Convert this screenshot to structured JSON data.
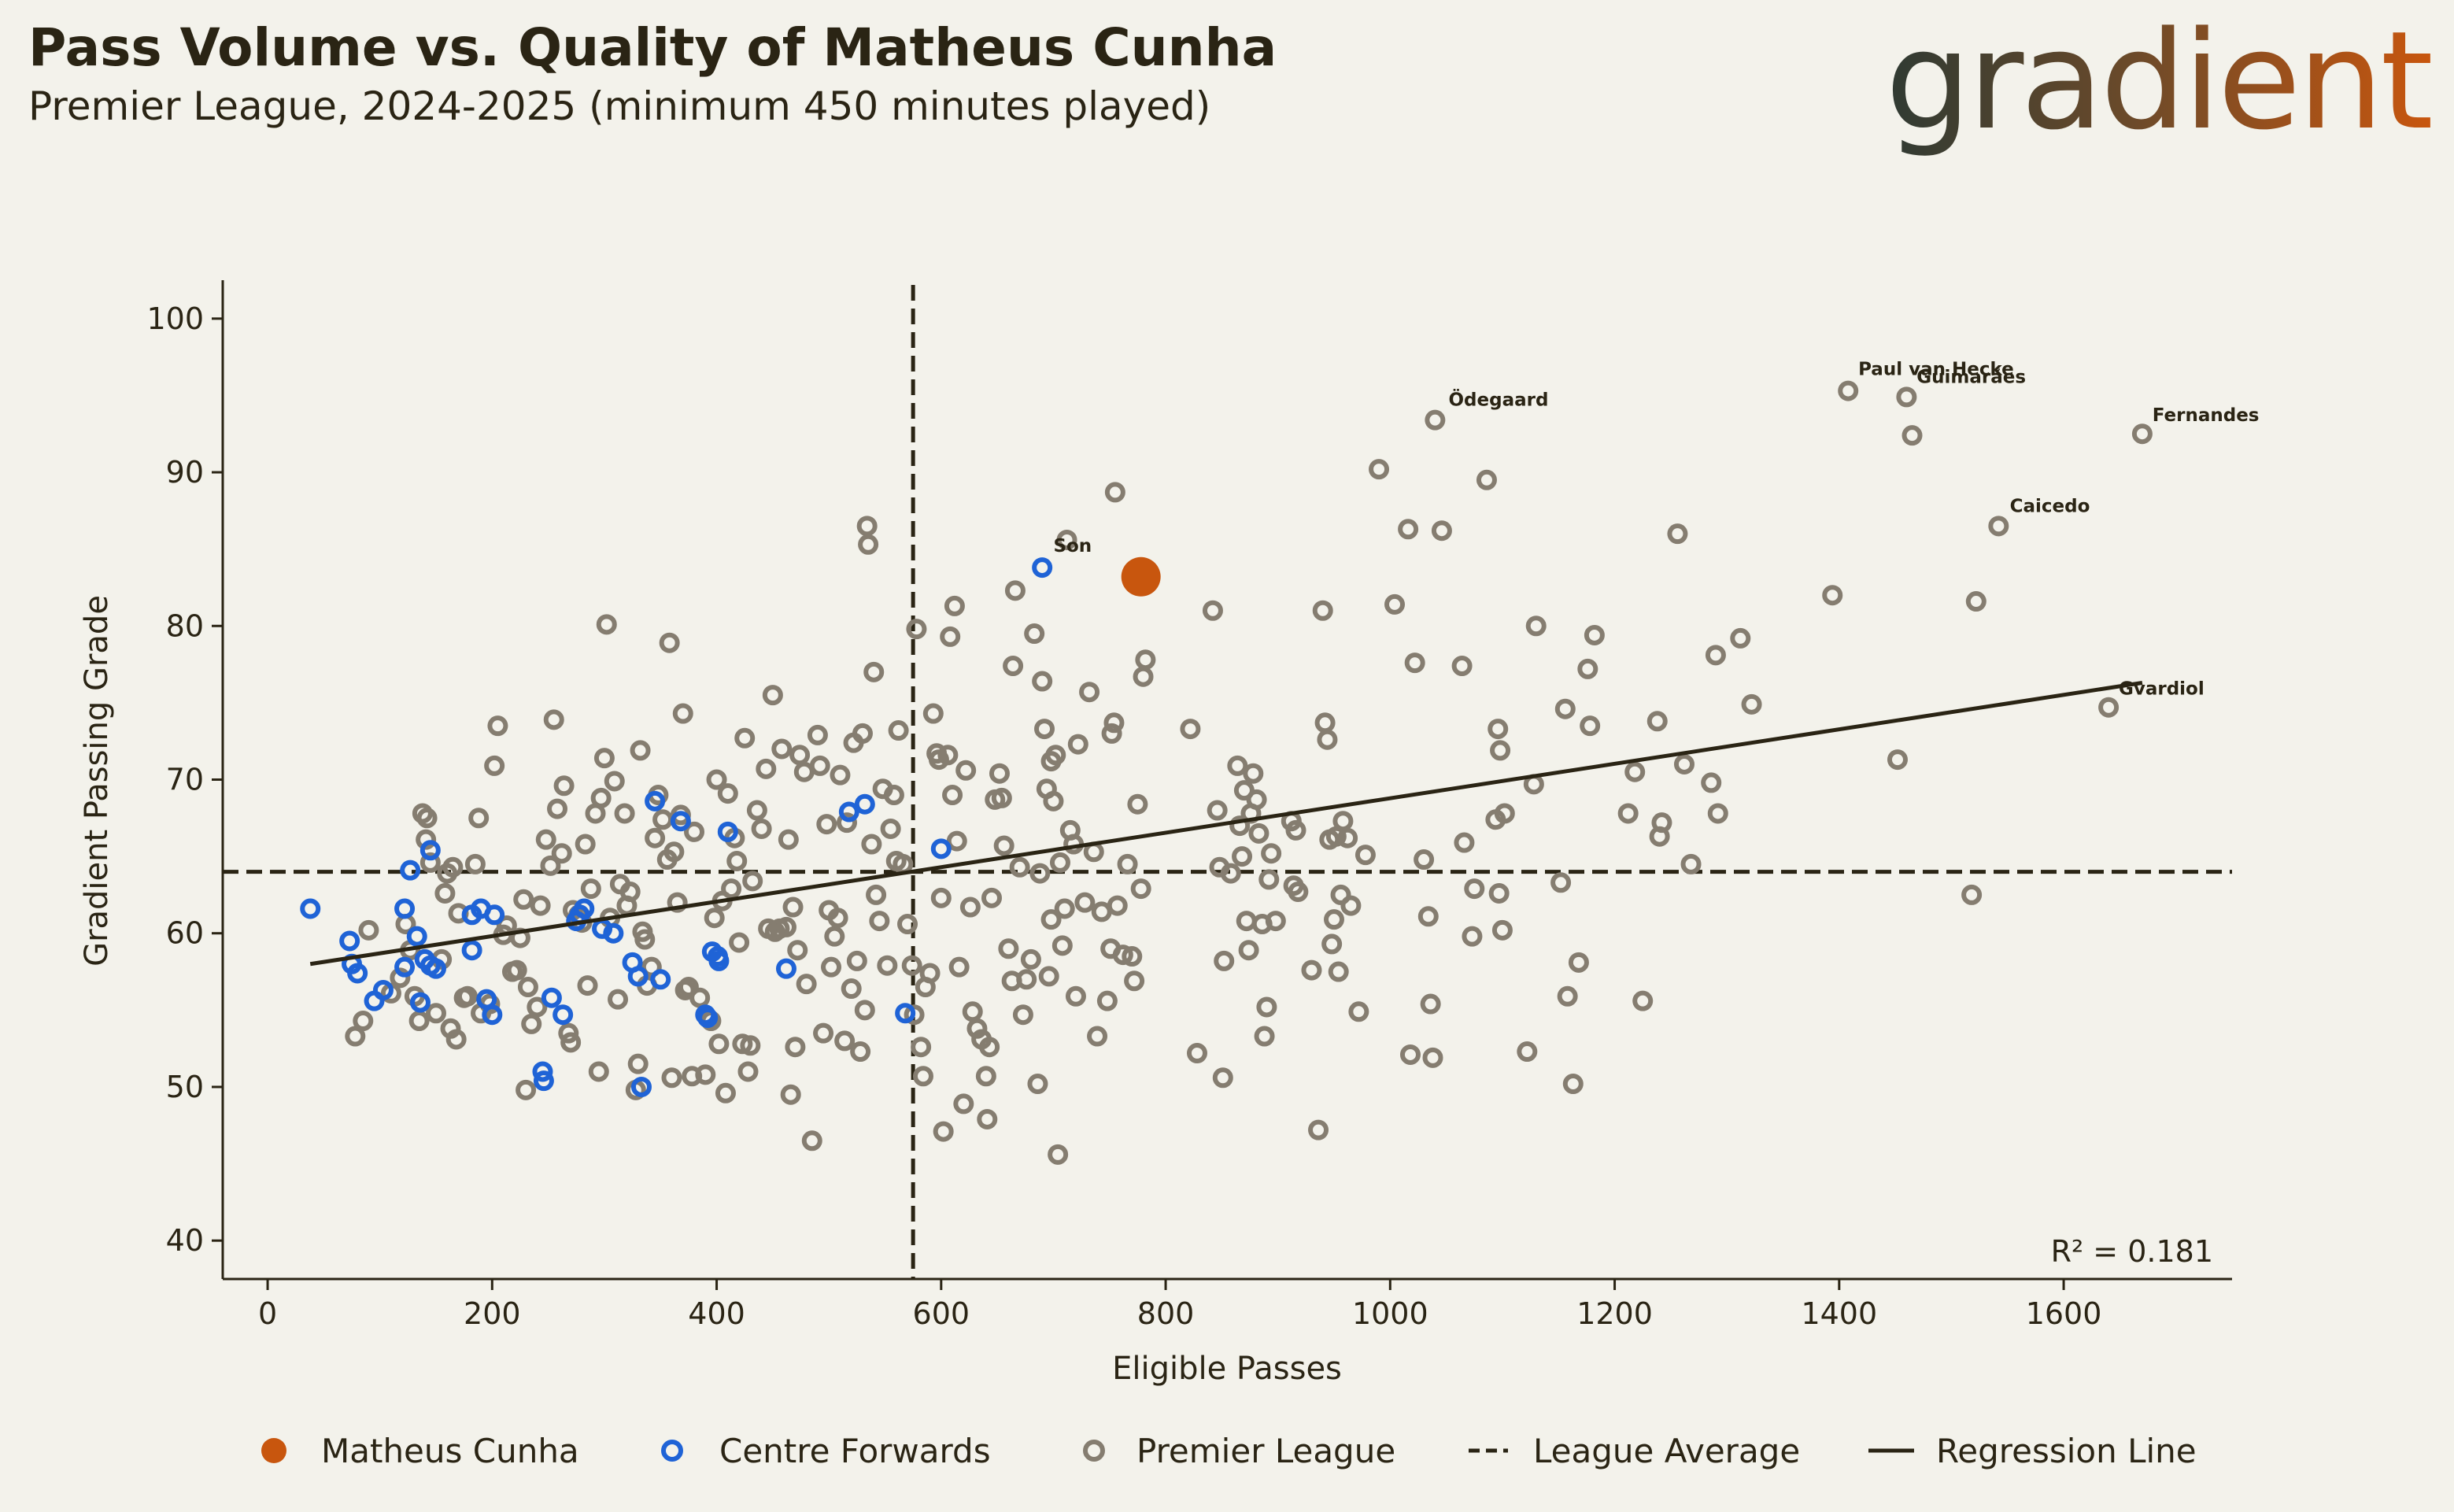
{
  "header": {
    "title": "Pass Volume vs. Quality of Matheus Cunha",
    "subtitle": "Premier League, 2024-2025 (minimum 450 minutes played)",
    "logo_text": "gradient"
  },
  "colors": {
    "background": "#f3f2eb",
    "text": "#2a2414",
    "highlight": "#c8560e",
    "centre_forward": "#1f63d6",
    "league": "#857d70",
    "lines": "#2a2414"
  },
  "chart_data": {
    "type": "scatter",
    "title": "Pass Volume vs. Quality of Matheus Cunha",
    "xlabel": "Eligible Passes",
    "ylabel": "Gradient Passing Grade",
    "xlim": [
      -40,
      1750
    ],
    "ylim": [
      37.5,
      102.5
    ],
    "xticks": [
      0,
      200,
      400,
      600,
      800,
      1000,
      1200,
      1400,
      1600
    ],
    "yticks": [
      40,
      50,
      60,
      70,
      80,
      90,
      100
    ],
    "league_average": {
      "x": 575,
      "y": 64
    },
    "regression": {
      "x1": 38,
      "y1": 58.0,
      "x2": 1670,
      "y2": 76.3
    },
    "r_squared_label": "R² = 0.181",
    "legend": [
      {
        "label": "Matheus Cunha",
        "kind": "highlight"
      },
      {
        "label": "Centre Forwards",
        "kind": "cf"
      },
      {
        "label": "Premier League",
        "kind": "league"
      },
      {
        "label": "League Average",
        "kind": "dashed"
      },
      {
        "label": "Regression Line",
        "kind": "solid"
      }
    ],
    "highlight": {
      "name": "Matheus Cunha",
      "x": 778,
      "y": 83.2
    },
    "annotations": [
      {
        "label": "Son",
        "x": 693,
        "y": 84.0
      },
      {
        "label": "Ödegaard",
        "x": 1045,
        "y": 93.5
      },
      {
        "label": "Paul van Hecke",
        "x": 1410,
        "y": 95.5
      },
      {
        "label": "Guimarães",
        "x": 1462,
        "y": 95.0
      },
      {
        "label": "Fernandes",
        "x": 1672,
        "y": 92.5
      },
      {
        "label": "Caicedo",
        "x": 1545,
        "y": 86.6
      },
      {
        "label": "Gvardiol",
        "x": 1642,
        "y": 74.7
      }
    ],
    "centre_forwards": [
      [
        38,
        61.6
      ],
      [
        73,
        59.5
      ],
      [
        75,
        58.0
      ],
      [
        80,
        57.4
      ],
      [
        95,
        55.6
      ],
      [
        103,
        56.3
      ],
      [
        122,
        57.8
      ],
      [
        122,
        61.6
      ],
      [
        127,
        64.1
      ],
      [
        133,
        59.8
      ],
      [
        136,
        55.5
      ],
      [
        140,
        58.3
      ],
      [
        145,
        65.4
      ],
      [
        145,
        57.9
      ],
      [
        150,
        57.7
      ],
      [
        182,
        61.2
      ],
      [
        182,
        58.9
      ],
      [
        190,
        61.6
      ],
      [
        195,
        55.7
      ],
      [
        200,
        54.7
      ],
      [
        202,
        61.2
      ],
      [
        245,
        51.0
      ],
      [
        246,
        50.4
      ],
      [
        253,
        55.8
      ],
      [
        263,
        54.7
      ],
      [
        275,
        60.8
      ],
      [
        278,
        61.2
      ],
      [
        282,
        61.6
      ],
      [
        298,
        60.3
      ],
      [
        308,
        60.0
      ],
      [
        325,
        58.1
      ],
      [
        330,
        57.2
      ],
      [
        333,
        50.0
      ],
      [
        345,
        68.6
      ],
      [
        350,
        57.0
      ],
      [
        368,
        67.3
      ],
      [
        390,
        54.7
      ],
      [
        392,
        54.5
      ],
      [
        396,
        58.8
      ],
      [
        401,
        58.5
      ],
      [
        402,
        58.2
      ],
      [
        410,
        66.6
      ],
      [
        462,
        57.7
      ],
      [
        518,
        67.9
      ],
      [
        532,
        68.4
      ],
      [
        568,
        54.8
      ],
      [
        600,
        65.5
      ],
      [
        690,
        83.8
      ]
    ],
    "league_points": [
      [
        78,
        53.3
      ],
      [
        85,
        54.3
      ],
      [
        90,
        60.2
      ],
      [
        110,
        56.1
      ],
      [
        118,
        57.1
      ],
      [
        123,
        60.6
      ],
      [
        127,
        58.9
      ],
      [
        131,
        55.9
      ],
      [
        135,
        54.3
      ],
      [
        138,
        67.8
      ],
      [
        141,
        66.1
      ],
      [
        142,
        67.5
      ],
      [
        145,
        64.6
      ],
      [
        150,
        54.8
      ],
      [
        155,
        58.3
      ],
      [
        158,
        62.6
      ],
      [
        160,
        63.9
      ],
      [
        163,
        53.8
      ],
      [
        165,
        64.3
      ],
      [
        168,
        53.1
      ],
      [
        170,
        61.3
      ],
      [
        175,
        55.8
      ],
      [
        178,
        55.9
      ],
      [
        185,
        64.5
      ],
      [
        188,
        67.5
      ],
      [
        190,
        54.8
      ],
      [
        198,
        55.4
      ],
      [
        202,
        70.9
      ],
      [
        205,
        73.5
      ],
      [
        210,
        59.9
      ],
      [
        213,
        60.5
      ],
      [
        218,
        57.5
      ],
      [
        222,
        57.6
      ],
      [
        225,
        59.7
      ],
      [
        228,
        62.2
      ],
      [
        230,
        49.8
      ],
      [
        232,
        56.5
      ],
      [
        235,
        54.1
      ],
      [
        240,
        55.2
      ],
      [
        243,
        61.8
      ],
      [
        248,
        66.1
      ],
      [
        252,
        64.4
      ],
      [
        255,
        73.9
      ],
      [
        258,
        68.1
      ],
      [
        262,
        65.2
      ],
      [
        264,
        69.6
      ],
      [
        268,
        53.5
      ],
      [
        270,
        52.9
      ],
      [
        272,
        61.5
      ],
      [
        277,
        61.2
      ],
      [
        280,
        60.7
      ],
      [
        283,
        65.8
      ],
      [
        285,
        56.6
      ],
      [
        288,
        62.9
      ],
      [
        292,
        67.8
      ],
      [
        295,
        51.0
      ],
      [
        297,
        68.8
      ],
      [
        300,
        71.4
      ],
      [
        302,
        80.1
      ],
      [
        305,
        61.0
      ],
      [
        309,
        69.9
      ],
      [
        312,
        55.7
      ],
      [
        314,
        63.2
      ],
      [
        318,
        67.8
      ],
      [
        320,
        61.8
      ],
      [
        323,
        62.7
      ],
      [
        328,
        49.8
      ],
      [
        330,
        51.5
      ],
      [
        332,
        71.9
      ],
      [
        334,
        60.1
      ],
      [
        336,
        59.6
      ],
      [
        338,
        56.6
      ],
      [
        342,
        57.8
      ],
      [
        345,
        66.2
      ],
      [
        348,
        69.0
      ],
      [
        352,
        67.4
      ],
      [
        356,
        64.8
      ],
      [
        358,
        78.9
      ],
      [
        360,
        50.6
      ],
      [
        362,
        65.3
      ],
      [
        365,
        62.0
      ],
      [
        368,
        67.7
      ],
      [
        370,
        74.3
      ],
      [
        372,
        56.3
      ],
      [
        375,
        56.5
      ],
      [
        378,
        50.7
      ],
      [
        380,
        66.6
      ],
      [
        385,
        55.8
      ],
      [
        390,
        50.8
      ],
      [
        395,
        54.3
      ],
      [
        398,
        61.0
      ],
      [
        400,
        70.0
      ],
      [
        402,
        52.8
      ],
      [
        405,
        62.1
      ],
      [
        408,
        49.6
      ],
      [
        410,
        69.1
      ],
      [
        413,
        62.9
      ],
      [
        416,
        66.2
      ],
      [
        418,
        64.7
      ],
      [
        420,
        59.4
      ],
      [
        423,
        52.8
      ],
      [
        425,
        72.7
      ],
      [
        428,
        51.0
      ],
      [
        430,
        52.7
      ],
      [
        432,
        63.4
      ],
      [
        436,
        68.0
      ],
      [
        440,
        66.8
      ],
      [
        444,
        70.7
      ],
      [
        446,
        60.3
      ],
      [
        450,
        75.5
      ],
      [
        452,
        60.1
      ],
      [
        456,
        60.3
      ],
      [
        458,
        72.0
      ],
      [
        462,
        60.4
      ],
      [
        464,
        66.1
      ],
      [
        466,
        49.5
      ],
      [
        468,
        61.7
      ],
      [
        470,
        52.6
      ],
      [
        472,
        58.9
      ],
      [
        474,
        71.6
      ],
      [
        478,
        70.5
      ],
      [
        480,
        56.7
      ],
      [
        485,
        46.5
      ],
      [
        490,
        72.9
      ],
      [
        492,
        70.9
      ],
      [
        495,
        53.5
      ],
      [
        498,
        67.1
      ],
      [
        500,
        61.5
      ],
      [
        502,
        57.8
      ],
      [
        505,
        59.8
      ],
      [
        508,
        61.0
      ],
      [
        510,
        70.3
      ],
      [
        514,
        53.0
      ],
      [
        516,
        67.2
      ],
      [
        520,
        56.4
      ],
      [
        522,
        72.4
      ],
      [
        525,
        58.2
      ],
      [
        528,
        52.3
      ],
      [
        530,
        73.0
      ],
      [
        532,
        55.0
      ],
      [
        534,
        86.5
      ],
      [
        535,
        85.3
      ],
      [
        538,
        65.8
      ],
      [
        540,
        77.0
      ],
      [
        542,
        62.5
      ],
      [
        545,
        60.8
      ],
      [
        548,
        69.4
      ],
      [
        552,
        57.9
      ],
      [
        555,
        66.8
      ],
      [
        558,
        69.0
      ],
      [
        560,
        64.7
      ],
      [
        562,
        73.2
      ],
      [
        566,
        64.5
      ],
      [
        570,
        60.6
      ],
      [
        574,
        57.9
      ],
      [
        576,
        54.7
      ],
      [
        578,
        79.8
      ],
      [
        582,
        52.6
      ],
      [
        584,
        50.7
      ],
      [
        586,
        56.5
      ],
      [
        590,
        57.4
      ],
      [
        593,
        74.3
      ],
      [
        596,
        71.7
      ],
      [
        598,
        71.3
      ],
      [
        600,
        62.3
      ],
      [
        602,
        47.1
      ],
      [
        606,
        71.6
      ],
      [
        608,
        79.3
      ],
      [
        610,
        69.0
      ],
      [
        612,
        81.3
      ],
      [
        614,
        66.0
      ],
      [
        616,
        57.8
      ],
      [
        620,
        48.9
      ],
      [
        622,
        70.6
      ],
      [
        626,
        61.7
      ],
      [
        628,
        54.9
      ],
      [
        632,
        53.8
      ],
      [
        636,
        53.1
      ],
      [
        640,
        50.7
      ],
      [
        641,
        47.9
      ],
      [
        643,
        52.6
      ],
      [
        645,
        62.3
      ],
      [
        648,
        68.7
      ],
      [
        652,
        70.4
      ],
      [
        654,
        68.8
      ],
      [
        656,
        65.7
      ],
      [
        660,
        59.0
      ],
      [
        663,
        56.9
      ],
      [
        664,
        77.4
      ],
      [
        666,
        82.3
      ],
      [
        670,
        64.3
      ],
      [
        673,
        54.7
      ],
      [
        676,
        57.0
      ],
      [
        680,
        58.3
      ],
      [
        683,
        79.5
      ],
      [
        686,
        50.2
      ],
      [
        688,
        63.9
      ],
      [
        690,
        76.4
      ],
      [
        692,
        73.3
      ],
      [
        694,
        69.4
      ],
      [
        696,
        57.2
      ],
      [
        698,
        60.9
      ],
      [
        698,
        71.2
      ],
      [
        700,
        68.6
      ],
      [
        702,
        71.6
      ],
      [
        704,
        45.6
      ],
      [
        706,
        64.6
      ],
      [
        708,
        59.2
      ],
      [
        710,
        61.6
      ],
      [
        712,
        85.6
      ],
      [
        715,
        66.7
      ],
      [
        718,
        65.8
      ],
      [
        720,
        55.9
      ],
      [
        722,
        72.3
      ],
      [
        728,
        62.0
      ],
      [
        732,
        75.7
      ],
      [
        736,
        65.3
      ],
      [
        739,
        53.3
      ],
      [
        743,
        61.4
      ],
      [
        748,
        55.6
      ],
      [
        751,
        59.0
      ],
      [
        752,
        73.0
      ],
      [
        754,
        73.7
      ],
      [
        755,
        88.7
      ],
      [
        757,
        61.8
      ],
      [
        762,
        58.6
      ],
      [
        766,
        64.5
      ],
      [
        770,
        58.5
      ],
      [
        772,
        56.9
      ],
      [
        775,
        68.4
      ],
      [
        778,
        62.9
      ],
      [
        780,
        76.7
      ],
      [
        782,
        77.8
      ],
      [
        822,
        73.3
      ],
      [
        828,
        52.2
      ],
      [
        842,
        81.0
      ],
      [
        846,
        68.0
      ],
      [
        848,
        64.3
      ],
      [
        851,
        50.6
      ],
      [
        852,
        58.2
      ],
      [
        858,
        63.9
      ],
      [
        864,
        70.9
      ],
      [
        866,
        67.0
      ],
      [
        868,
        65.0
      ],
      [
        870,
        69.3
      ],
      [
        872,
        60.8
      ],
      [
        874,
        58.9
      ],
      [
        876,
        67.8
      ],
      [
        878,
        70.4
      ],
      [
        881,
        68.7
      ],
      [
        883,
        66.5
      ],
      [
        886,
        60.6
      ],
      [
        888,
        53.3
      ],
      [
        890,
        55.2
      ],
      [
        892,
        63.5
      ],
      [
        894,
        65.2
      ],
      [
        898,
        60.8
      ],
      [
        912,
        67.3
      ],
      [
        914,
        63.1
      ],
      [
        916,
        66.7
      ],
      [
        918,
        62.7
      ],
      [
        930,
        57.6
      ],
      [
        936,
        47.2
      ],
      [
        940,
        81.0
      ],
      [
        942,
        73.7
      ],
      [
        944,
        72.6
      ],
      [
        946,
        66.1
      ],
      [
        948,
        59.3
      ],
      [
        950,
        60.9
      ],
      [
        952,
        66.3
      ],
      [
        954,
        57.5
      ],
      [
        956,
        62.5
      ],
      [
        958,
        67.3
      ],
      [
        962,
        66.2
      ],
      [
        965,
        61.8
      ],
      [
        972,
        54.9
      ],
      [
        978,
        65.1
      ],
      [
        990,
        90.2
      ],
      [
        1004,
        81.4
      ],
      [
        1016,
        86.3
      ],
      [
        1018,
        52.1
      ],
      [
        1022,
        77.6
      ],
      [
        1030,
        64.8
      ],
      [
        1034,
        61.1
      ],
      [
        1036,
        55.4
      ],
      [
        1038,
        51.9
      ],
      [
        1040,
        93.4
      ],
      [
        1046,
        86.2
      ],
      [
        1064,
        77.4
      ],
      [
        1066,
        65.9
      ],
      [
        1073,
        59.8
      ],
      [
        1075,
        62.9
      ],
      [
        1086,
        89.5
      ],
      [
        1094,
        67.4
      ],
      [
        1096,
        73.3
      ],
      [
        1097,
        62.6
      ],
      [
        1098,
        71.9
      ],
      [
        1100,
        60.2
      ],
      [
        1102,
        67.8
      ],
      [
        1122,
        52.3
      ],
      [
        1128,
        69.7
      ],
      [
        1130,
        80.0
      ],
      [
        1152,
        63.3
      ],
      [
        1156,
        74.6
      ],
      [
        1158,
        55.9
      ],
      [
        1163,
        50.2
      ],
      [
        1168,
        58.1
      ],
      [
        1176,
        77.2
      ],
      [
        1178,
        73.5
      ],
      [
        1182,
        79.4
      ],
      [
        1212,
        67.8
      ],
      [
        1218,
        70.5
      ],
      [
        1225,
        55.6
      ],
      [
        1238,
        73.8
      ],
      [
        1240,
        66.3
      ],
      [
        1242,
        67.2
      ],
      [
        1256,
        86.0
      ],
      [
        1262,
        71.0
      ],
      [
        1268,
        64.5
      ],
      [
        1286,
        69.8
      ],
      [
        1290,
        78.1
      ],
      [
        1292,
        67.8
      ],
      [
        1312,
        79.2
      ],
      [
        1322,
        74.9
      ],
      [
        1394,
        82.0
      ],
      [
        1408,
        95.3
      ],
      [
        1452,
        71.3
      ],
      [
        1460,
        94.9
      ],
      [
        1465,
        92.4
      ],
      [
        1518,
        62.5
      ],
      [
        1522,
        81.6
      ],
      [
        1542,
        86.5
      ],
      [
        1640,
        74.7
      ],
      [
        1670,
        92.5
      ]
    ]
  }
}
